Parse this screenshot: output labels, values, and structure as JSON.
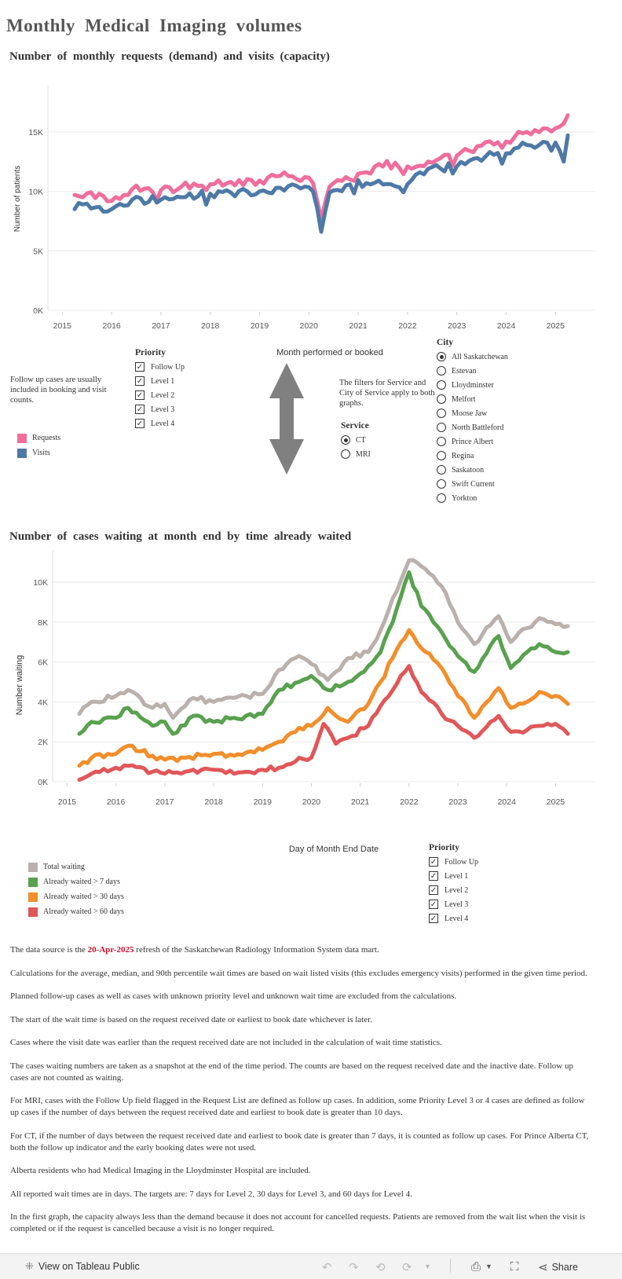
{
  "page_title": "Monthly Medical Imaging volumes",
  "chart1": {
    "title": "Number of monthly requests (demand) and visits (capacity)",
    "ylabel": "Number of patients",
    "xlabel": "Month performed or booked",
    "yticks": [
      "15K",
      "10K",
      "5K",
      "0K"
    ],
    "xticks": [
      "2015",
      "2016",
      "2017",
      "2018",
      "2019",
      "2020",
      "2021",
      "2022",
      "2023",
      "2024",
      "2025"
    ],
    "legend": [
      {
        "label": "Requests",
        "color": "#f06d9c"
      },
      {
        "label": "Visits",
        "color": "#4e79a7"
      }
    ],
    "note": "Follow up cases are usually included in booking and visit counts."
  },
  "chart_data": [
    {
      "type": "line",
      "title": "Number of monthly requests (demand) and visits (capacity)",
      "xlabel": "Month performed or booked",
      "ylabel": "Number of patients",
      "x_start": "2015-04",
      "x_end": "2025-04",
      "ylim": [
        0,
        17500
      ],
      "grid": true,
      "legend": "bottom-left",
      "series": [
        {
          "name": "Requests",
          "color": "#f06d9c",
          "anchors": [
            [
              "2015-04",
              9700
            ],
            [
              "2015-06",
              9500
            ],
            [
              "2015-10",
              9800
            ],
            [
              "2016-01",
              9200
            ],
            [
              "2016-06",
              10200
            ],
            [
              "2017-01",
              10100
            ],
            [
              "2017-06",
              10400
            ],
            [
              "2018-01",
              10600
            ],
            [
              "2018-06",
              10800
            ],
            [
              "2019-01",
              10900
            ],
            [
              "2019-06",
              11300
            ],
            [
              "2019-12",
              11200
            ],
            [
              "2020-02",
              10700
            ],
            [
              "2020-04",
              7600
            ],
            [
              "2020-06",
              10400
            ],
            [
              "2020-10",
              11200
            ],
            [
              "2021-03",
              11600
            ],
            [
              "2021-06",
              12300
            ],
            [
              "2022-01",
              12100
            ],
            [
              "2022-06",
              12500
            ],
            [
              "2023-01",
              13000
            ],
            [
              "2023-06",
              13800
            ],
            [
              "2024-01",
              14200
            ],
            [
              "2024-06",
              15000
            ],
            [
              "2025-01",
              15300
            ],
            [
              "2025-03",
              15700
            ],
            [
              "2025-04",
              16400
            ]
          ]
        },
        {
          "name": "Visits",
          "color": "#4e79a7",
          "anchors": [
            [
              "2015-04",
              8500
            ],
            [
              "2015-06",
              8900
            ],
            [
              "2015-10",
              8700
            ],
            [
              "2016-01",
              8500
            ],
            [
              "2016-06",
              9300
            ],
            [
              "2017-01",
              9300
            ],
            [
              "2017-06",
              9500
            ],
            [
              "2018-01",
              9800
            ],
            [
              "2018-06",
              9900
            ],
            [
              "2019-01",
              10000
            ],
            [
              "2019-06",
              10300
            ],
            [
              "2019-12",
              10400
            ],
            [
              "2020-02",
              10000
            ],
            [
              "2020-04",
              6600
            ],
            [
              "2020-06",
              9900
            ],
            [
              "2020-10",
              10500
            ],
            [
              "2021-03",
              10700
            ],
            [
              "2021-06",
              10900
            ],
            [
              "2022-01",
              10600
            ],
            [
              "2022-06",
              11900
            ],
            [
              "2023-01",
              12100
            ],
            [
              "2023-06",
              12800
            ],
            [
              "2024-01",
              13200
            ],
            [
              "2024-06",
              13900
            ],
            [
              "2025-01",
              14100
            ],
            [
              "2025-03",
              12500
            ],
            [
              "2025-04",
              14700
            ]
          ]
        }
      ]
    },
    {
      "type": "line",
      "title": "Number of cases waiting at month end by time already waited",
      "xlabel": "Day of Month End Date",
      "ylabel": "Number waiting",
      "x_start": "2015-04",
      "x_end": "2025-04",
      "ylim": [
        0,
        11500
      ],
      "grid": true,
      "legend": "bottom-left",
      "series": [
        {
          "name": "Total waiting",
          "color": "#bab0ac",
          "anchors": [
            [
              "2015-04",
              3400
            ],
            [
              "2015-07",
              4000
            ],
            [
              "2016-01",
              4300
            ],
            [
              "2016-04",
              4600
            ],
            [
              "2016-10",
              3700
            ],
            [
              "2017-01",
              3900
            ],
            [
              "2017-03",
              3200
            ],
            [
              "2017-08",
              4200
            ],
            [
              "2018-01",
              4000
            ],
            [
              "2018-06",
              4200
            ],
            [
              "2019-01",
              4400
            ],
            [
              "2019-05",
              5600
            ],
            [
              "2019-10",
              6300
            ],
            [
              "2020-01",
              5900
            ],
            [
              "2020-05",
              5100
            ],
            [
              "2020-10",
              6200
            ],
            [
              "2021-03",
              6500
            ],
            [
              "2021-06",
              7600
            ],
            [
              "2021-09",
              9200
            ],
            [
              "2022-01",
              11100
            ],
            [
              "2022-04",
              10800
            ],
            [
              "2022-09",
              9800
            ],
            [
              "2023-01",
              8000
            ],
            [
              "2023-05",
              6900
            ],
            [
              "2023-11",
              8300
            ],
            [
              "2024-02",
              7000
            ],
            [
              "2024-06",
              7700
            ],
            [
              "2024-09",
              8200
            ],
            [
              "2025-01",
              7900
            ],
            [
              "2025-04",
              7800
            ]
          ]
        },
        {
          "name": "Already waited > 7 days",
          "color": "#59a14f",
          "anchors": [
            [
              "2015-04",
              2400
            ],
            [
              "2015-07",
              3000
            ],
            [
              "2016-01",
              3200
            ],
            [
              "2016-04",
              3700
            ],
            [
              "2016-10",
              2800
            ],
            [
              "2017-01",
              3000
            ],
            [
              "2017-03",
              2400
            ],
            [
              "2017-08",
              3300
            ],
            [
              "2018-01",
              3000
            ],
            [
              "2018-06",
              3200
            ],
            [
              "2019-01",
              3400
            ],
            [
              "2019-05",
              4600
            ],
            [
              "2019-10",
              5000
            ],
            [
              "2020-01",
              5300
            ],
            [
              "2020-05",
              4600
            ],
            [
              "2020-10",
              5000
            ],
            [
              "2021-03",
              5800
            ],
            [
              "2021-06",
              6500
            ],
            [
              "2021-09",
              8000
            ],
            [
              "2022-01",
              10500
            ],
            [
              "2022-04",
              8800
            ],
            [
              "2022-09",
              7500
            ],
            [
              "2023-01",
              6300
            ],
            [
              "2023-05",
              5500
            ],
            [
              "2023-11",
              7300
            ],
            [
              "2024-02",
              5700
            ],
            [
              "2024-06",
              6500
            ],
            [
              "2024-09",
              6900
            ],
            [
              "2025-01",
              6500
            ],
            [
              "2025-04",
              6500
            ]
          ]
        },
        {
          "name": "Already waited > 30 days",
          "color": "#f28e2b",
          "anchors": [
            [
              "2015-04",
              800
            ],
            [
              "2015-07",
              1200
            ],
            [
              "2016-01",
              1400
            ],
            [
              "2016-04",
              1800
            ],
            [
              "2016-10",
              1300
            ],
            [
              "2017-01",
              1100
            ],
            [
              "2017-06",
              1200
            ],
            [
              "2018-01",
              1400
            ],
            [
              "2018-06",
              1300
            ],
            [
              "2019-01",
              1600
            ],
            [
              "2019-05",
              2000
            ],
            [
              "2019-10",
              2700
            ],
            [
              "2020-01",
              2800
            ],
            [
              "2020-05",
              3700
            ],
            [
              "2020-10",
              3000
            ],
            [
              "2021-03",
              3900
            ],
            [
              "2021-06",
              5000
            ],
            [
              "2021-09",
              6200
            ],
            [
              "2022-01",
              7600
            ],
            [
              "2022-04",
              6700
            ],
            [
              "2022-09",
              5700
            ],
            [
              "2023-01",
              4300
            ],
            [
              "2023-05",
              3200
            ],
            [
              "2023-11",
              4700
            ],
            [
              "2024-02",
              3700
            ],
            [
              "2024-06",
              4000
            ],
            [
              "2024-09",
              4500
            ],
            [
              "2025-01",
              4300
            ],
            [
              "2025-04",
              3900
            ]
          ]
        },
        {
          "name": "Already waited > 60 days",
          "color": "#e15759",
          "anchors": [
            [
              "2015-04",
              100
            ],
            [
              "2015-07",
              400
            ],
            [
              "2016-01",
              700
            ],
            [
              "2016-04",
              800
            ],
            [
              "2016-10",
              500
            ],
            [
              "2017-01",
              400
            ],
            [
              "2017-06",
              500
            ],
            [
              "2018-01",
              600
            ],
            [
              "2018-06",
              400
            ],
            [
              "2019-01",
              600
            ],
            [
              "2019-05",
              700
            ],
            [
              "2019-10",
              1200
            ],
            [
              "2020-01",
              1200
            ],
            [
              "2020-04",
              2900
            ],
            [
              "2020-07",
              1900
            ],
            [
              "2020-10",
              2200
            ],
            [
              "2021-03",
              2800
            ],
            [
              "2021-06",
              3800
            ],
            [
              "2021-09",
              4600
            ],
            [
              "2022-01",
              5800
            ],
            [
              "2022-04",
              4500
            ],
            [
              "2022-09",
              3400
            ],
            [
              "2023-01",
              2800
            ],
            [
              "2023-05",
              2200
            ],
            [
              "2023-11",
              3300
            ],
            [
              "2024-02",
              2500
            ],
            [
              "2024-06",
              2600
            ],
            [
              "2024-09",
              2800
            ],
            [
              "2025-01",
              2900
            ],
            [
              "2025-04",
              2400
            ]
          ]
        }
      ]
    }
  ],
  "filters1": {
    "priority_title": "Priority",
    "priority_items": [
      "Follow Up",
      "Level 1",
      "Level 2",
      "Level 3",
      "Level 4"
    ],
    "filters_note": "The filters for Service and City of Service apply to both graphs.",
    "service_title": "Service",
    "service_items": [
      "CT",
      "MRI"
    ],
    "service_selected": "CT",
    "city_title": "City",
    "city_items": [
      "All Saskatchewan",
      "Estevan",
      "Lloydminster",
      "Melfort",
      "Moose Jaw",
      "North Battleford",
      "Prince Albert",
      "Regina",
      "Saskatoon",
      "Swift Current",
      "Yorkton"
    ],
    "city_selected": "All Saskatchewan"
  },
  "chart2": {
    "title": "Number of cases waiting at month end by time already waited",
    "ylabel": "Number waiting",
    "xlabel": "Day of Month End Date",
    "yticks": [
      "10K",
      "8K",
      "6K",
      "4K",
      "2K",
      "0K"
    ],
    "xticks": [
      "2015",
      "2016",
      "2017",
      "2018",
      "2019",
      "2020",
      "2021",
      "2022",
      "2023",
      "2024",
      "2025"
    ],
    "legend": [
      {
        "label": "Total waiting",
        "color": "#bab0ac"
      },
      {
        "label": "Already waited > 7 days",
        "color": "#59a14f"
      },
      {
        "label": "Already waited > 30 days",
        "color": "#f28e2b"
      },
      {
        "label": "Already waited > 60 days",
        "color": "#e15759"
      }
    ],
    "priority_title": "Priority",
    "priority_items": [
      "Follow Up",
      "Level 1",
      "Level 2",
      "Level 3",
      "Level 4"
    ]
  },
  "notes": {
    "source_prefix": "The data source is the ",
    "source_date": "20-Apr-2025",
    "source_suffix": " refresh of the Saskatchewan Radiology Information System data mart.",
    "paragraphs": [
      "Calculations for the average, median, and 90th percentile wait times are based on wait listed visits (this excludes emergency visits) performed in the given time period.",
      "Planned follow-up cases as well as cases with unknown priority level and unknown wait time are excluded from the calculations.",
      "The start of the wait time is based on the request received date or earliest to book date whichever is later.",
      "Cases where the visit date was earlier than the request received date are not included in the calculation of wait time statistics.",
      "The cases waiting numbers are taken as a snapshot at the end of the time period. The counts are based on the request received date and the inactive date. Follow up cases are not counted as waiting.",
      "For MRI, cases with the Follow Up field flagged in the Request List are defined as follow up cases. In addition, some Priority Level 3 or 4 cases are defined as follow up cases if the number of days between the request received date and earliest to book date is greater than 10 days.",
      "For CT, if the number of days between the request received date and earliest to book date is greater than 7 days, it is counted as follow up cases. For Prince Alberta CT, both the follow up indicator and the early booking dates were not used.",
      "Alberta residents who had Medical Imaging in the Lloydminster Hospital are included.",
      "All reported wait times are in days. The targets are: 7 days for Level 2, 30 days for Level 3, and 60 days for Level 4.",
      "In the first graph, the capacity always less than the demand because it does not account for cancelled requests. Patients are removed from the wait list when the visit is completed or if the request is cancelled because a visit is no longer required."
    ]
  },
  "footer": {
    "view_label": "View on Tableau Public",
    "share_label": "Share"
  }
}
